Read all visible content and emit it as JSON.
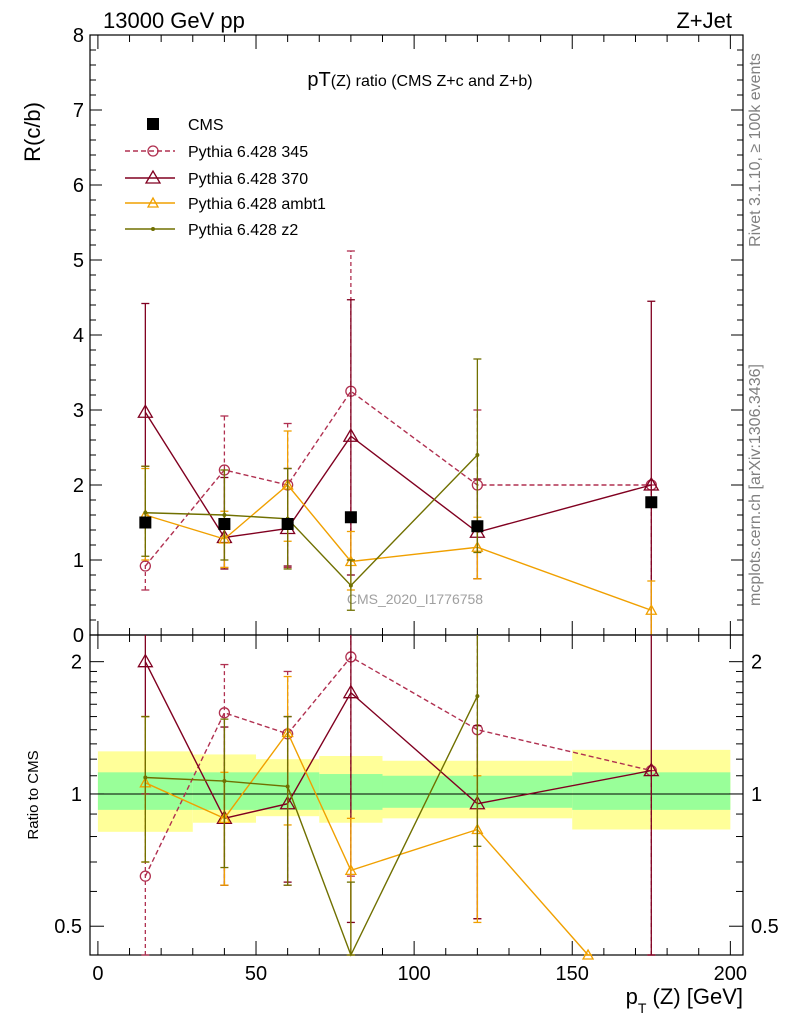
{
  "header": {
    "left_label": "13000 GeV pp",
    "right_label": "Z+Jet"
  },
  "side_labels": {
    "rivet": "Rivet 3.1.10, ≥ 100k events",
    "source": "mcplots.cern.ch [arXiv:1306.3436]"
  },
  "chart_data": [
    {
      "type": "line",
      "title": "pT(Z) ratio (CMS  Z+c and Z+b)",
      "title_main": "pT",
      "title_paren": "(Z)",
      "title_rest": " ratio (CMS  Z+c and Z+b)",
      "ylabel": "R(c/b)",
      "ylim": [
        0,
        8
      ],
      "yticks": [
        0,
        1,
        2,
        3,
        4,
        5,
        6,
        7,
        8
      ],
      "xlim": [
        -2.5,
        204
      ],
      "watermark": "CMS_2020_I1776758",
      "legend_position": "top-left",
      "data_series": {
        "name": "CMS",
        "x": [
          15,
          40,
          60,
          80,
          120,
          175
        ],
        "y": [
          1.5,
          1.48,
          1.48,
          1.57,
          1.45,
          1.77
        ],
        "color": "#000000"
      },
      "series": [
        {
          "name": "Pythia 6.428 345",
          "color": "#b03050",
          "marker": "open-circle",
          "dashed": true,
          "x": [
            15,
            40,
            60,
            80,
            120,
            175
          ],
          "y": [
            0.92,
            2.2,
            2.0,
            3.25,
            2.0,
            2.0
          ],
          "err_low": [
            0.6,
            0.9,
            0.9,
            1.0,
            0.75,
            0.0
          ],
          "err_high": [
            2.25,
            2.92,
            2.82,
            5.12,
            3.0,
            2.0
          ]
        },
        {
          "name": "Pythia 6.428 370",
          "color": "#800020",
          "marker": "open-triangle",
          "dashed": false,
          "x": [
            15,
            40,
            60,
            80,
            120,
            175
          ],
          "y": [
            2.97,
            1.3,
            1.42,
            2.65,
            1.37,
            2.0
          ],
          "err_low": [
            1.5,
            0.88,
            0.92,
            0.8,
            0.75,
            0.0
          ],
          "err_high": [
            4.42,
            2.1,
            2.22,
            4.47,
            2.08,
            4.45
          ]
        },
        {
          "name": "Pythia 6.428 ambt1",
          "color": "#f0a000",
          "marker": "open-triangle-small",
          "dashed": false,
          "x": [
            15,
            40,
            60,
            80,
            120,
            175
          ],
          "y": [
            1.6,
            1.28,
            2.0,
            0.98,
            1.17,
            0.33
          ],
          "err_low": [
            1.0,
            0.9,
            1.25,
            0.6,
            0.75,
            0.0
          ],
          "err_high": [
            2.22,
            1.65,
            2.72,
            1.38,
            1.57,
            0.72
          ]
        },
        {
          "name": "Pythia 6.428 z2",
          "color": "#707000",
          "marker": "dot",
          "dashed": false,
          "x": [
            15,
            40,
            60,
            80,
            120
          ],
          "y": [
            1.63,
            1.6,
            1.55,
            0.66,
            2.4
          ],
          "err_low": [
            1.05,
            1.0,
            0.88,
            0.33,
            1.1
          ],
          "err_high": [
            2.25,
            2.2,
            2.22,
            1.0,
            3.68
          ]
        }
      ]
    },
    {
      "type": "line",
      "ylabel": "Ratio to CMS",
      "xlabel_p": "p",
      "xlabel_T": "T",
      "xlabel_rest": " (Z) [GeV]",
      "xlim": [
        -2.5,
        204
      ],
      "xticks": [
        0,
        50,
        100,
        150,
        200
      ],
      "ylim": [
        0.43,
        2.3
      ],
      "yticks": [
        0.5,
        1,
        2
      ],
      "log_y": true,
      "bands": [
        {
          "x0": 0,
          "x1": 30,
          "inner": [
            0.92,
            1.12
          ],
          "outer": [
            0.82,
            1.25
          ]
        },
        {
          "x0": 30,
          "x1": 50,
          "inner": [
            0.92,
            1.12
          ],
          "outer": [
            0.86,
            1.23
          ]
        },
        {
          "x0": 50,
          "x1": 70,
          "inner": [
            0.92,
            1.12
          ],
          "outer": [
            0.89,
            1.2
          ]
        },
        {
          "x0": 70,
          "x1": 90,
          "inner": [
            0.92,
            1.11
          ],
          "outer": [
            0.86,
            1.22
          ]
        },
        {
          "x0": 90,
          "x1": 150,
          "inner": [
            0.93,
            1.1
          ],
          "outer": [
            0.88,
            1.19
          ]
        },
        {
          "x0": 150,
          "x1": 200,
          "inner": [
            0.92,
            1.12
          ],
          "outer": [
            0.83,
            1.26
          ]
        }
      ],
      "series": [
        {
          "name": "Pythia 6.428 345",
          "color": "#b03050",
          "marker": "open-circle",
          "dashed": true,
          "x": [
            15,
            40,
            60,
            80,
            120,
            175
          ],
          "y": [
            0.65,
            1.53,
            1.37,
            2.05,
            1.4,
            1.13
          ],
          "err_low": [
            0.43,
            0.62,
            0.62,
            0.65,
            0.52,
            0.43
          ],
          "err_high": [
            1.5,
            1.97,
            1.9,
            3.25,
            2.3,
            1.13
          ]
        },
        {
          "name": "Pythia 6.428 370",
          "color": "#800020",
          "marker": "open-triangle",
          "dashed": false,
          "x": [
            15,
            40,
            60,
            80,
            120,
            175
          ],
          "y": [
            2.0,
            0.88,
            0.95,
            1.7,
            0.95,
            1.13
          ],
          "err_low": [
            1.0,
            0.62,
            0.63,
            0.51,
            0.52,
            0.43
          ],
          "err_high": [
            2.3,
            1.42,
            1.5,
            2.3,
            1.43,
            2.3
          ]
        },
        {
          "name": "Pythia 6.428 ambt1",
          "color": "#f0a000",
          "marker": "open-triangle-small",
          "dashed": false,
          "x": [
            15,
            40,
            60,
            80,
            120,
            155
          ],
          "y": [
            1.06,
            0.88,
            1.38,
            0.67,
            0.83,
            0.43
          ],
          "err_low": [
            0.7,
            0.62,
            0.85,
            0.43,
            0.51,
            0.43
          ],
          "err_high": [
            1.5,
            1.12,
            1.85,
            0.88,
            1.1,
            0.43
          ]
        },
        {
          "name": "Pythia 6.428 z2",
          "color": "#707000",
          "marker": "dot",
          "dashed": false,
          "x": [
            15,
            40,
            60,
            80,
            120
          ],
          "y": [
            1.09,
            1.07,
            1.04,
            0.42,
            1.67
          ],
          "err_low": [
            0.7,
            0.68,
            0.62,
            0.43,
            0.76
          ],
          "err_high": [
            1.5,
            1.48,
            1.5,
            0.63,
            2.3
          ]
        }
      ]
    }
  ]
}
